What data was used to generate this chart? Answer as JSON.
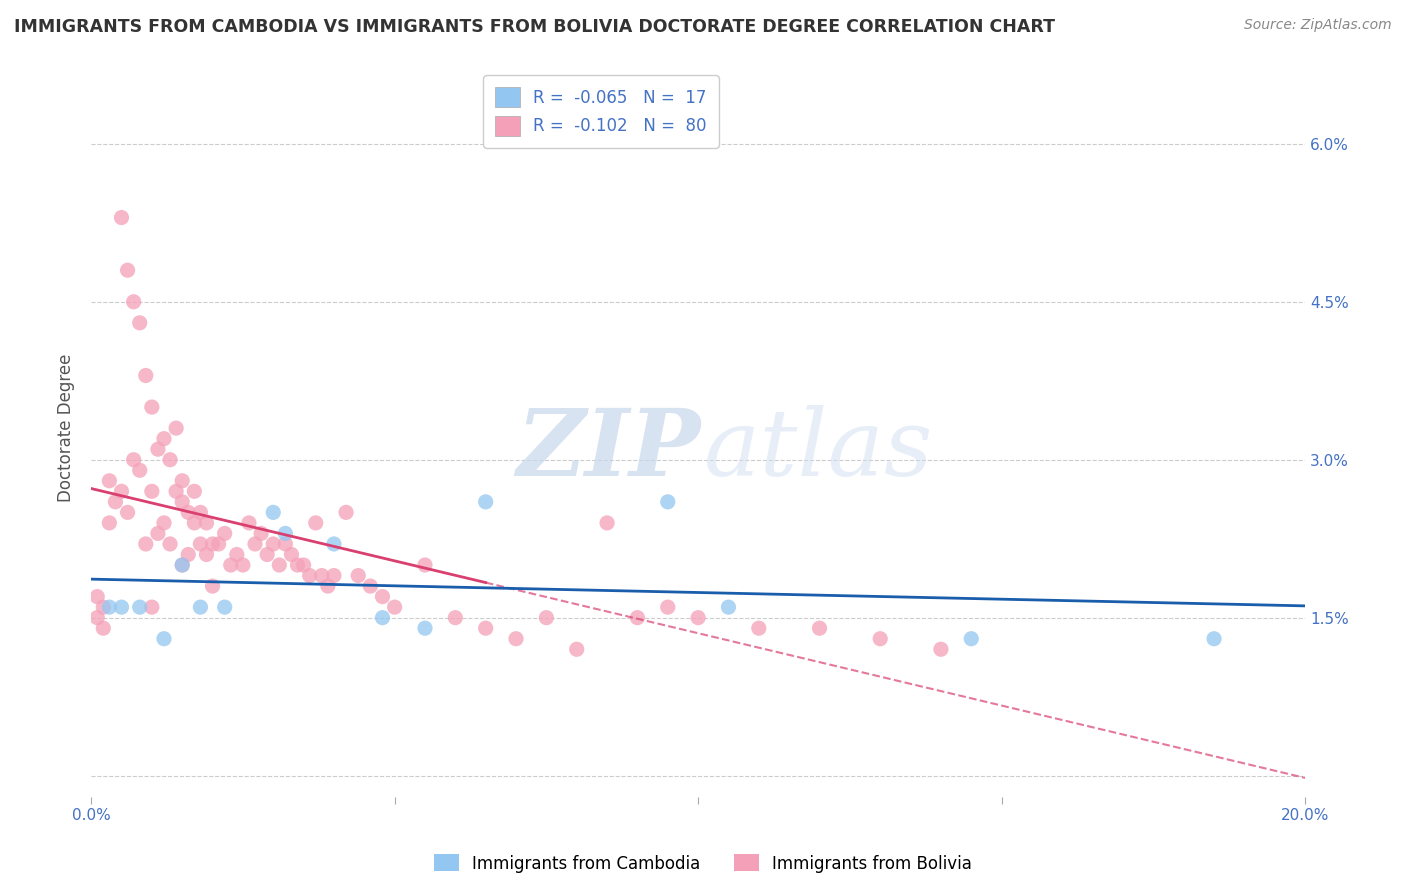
{
  "title": "IMMIGRANTS FROM CAMBODIA VS IMMIGRANTS FROM BOLIVIA DOCTORATE DEGREE CORRELATION CHART",
  "source": "Source: ZipAtlas.com",
  "ylabel": "Doctorate Degree",
  "xlim": [
    0.0,
    0.2
  ],
  "ylim": [
    -0.002,
    0.068
  ],
  "ytick_positions": [
    0.0,
    0.015,
    0.03,
    0.045,
    0.06
  ],
  "ytick_labels": [
    "",
    "1.5%",
    "3.0%",
    "4.5%",
    "6.0%"
  ],
  "xtick_positions": [
    0.0,
    0.05,
    0.1,
    0.15,
    0.2
  ],
  "xtick_labels_left": [
    "0.0%",
    "",
    "",
    "",
    ""
  ],
  "xtick_labels_right": [
    "",
    "",
    "",
    "",
    "20.0%"
  ],
  "grid_color": "#cccccc",
  "background_color": "#ffffff",
  "watermark_zip": "ZIP",
  "watermark_atlas": "atlas",
  "legend_R_cambodia": "-0.065",
  "legend_N_cambodia": "17",
  "legend_R_bolivia": "-0.102",
  "legend_N_bolivia": "80",
  "cambodia_color": "#93C6F0",
  "bolivia_color": "#F4A0B8",
  "cambodia_line_color": "#1A5DAB",
  "bolivia_line_color": "#D94070",
  "scatter_alpha": 0.75,
  "scatter_size": 120,
  "cambodia_x": [
    0.003,
    0.005,
    0.008,
    0.012,
    0.015,
    0.018,
    0.022,
    0.03,
    0.032,
    0.04,
    0.048,
    0.055,
    0.065,
    0.095,
    0.105,
    0.145,
    0.185
  ],
  "cambodia_y": [
    0.016,
    0.016,
    0.016,
    0.013,
    0.02,
    0.016,
    0.016,
    0.025,
    0.023,
    0.022,
    0.015,
    0.014,
    0.026,
    0.026,
    0.016,
    0.013,
    0.013
  ],
  "bolivia_x": [
    0.001,
    0.001,
    0.002,
    0.002,
    0.003,
    0.003,
    0.004,
    0.005,
    0.005,
    0.006,
    0.006,
    0.007,
    0.007,
    0.008,
    0.008,
    0.009,
    0.009,
    0.01,
    0.01,
    0.01,
    0.011,
    0.011,
    0.012,
    0.012,
    0.013,
    0.013,
    0.014,
    0.014,
    0.015,
    0.015,
    0.015,
    0.016,
    0.016,
    0.017,
    0.017,
    0.018,
    0.018,
    0.019,
    0.019,
    0.02,
    0.02,
    0.021,
    0.022,
    0.023,
    0.024,
    0.025,
    0.026,
    0.027,
    0.028,
    0.029,
    0.03,
    0.031,
    0.032,
    0.033,
    0.034,
    0.035,
    0.036,
    0.037,
    0.038,
    0.039,
    0.04,
    0.042,
    0.044,
    0.046,
    0.048,
    0.05,
    0.055,
    0.06,
    0.065,
    0.07,
    0.075,
    0.08,
    0.085,
    0.09,
    0.095,
    0.1,
    0.11,
    0.12,
    0.13,
    0.14
  ],
  "bolivia_y": [
    0.015,
    0.017,
    0.016,
    0.014,
    0.024,
    0.028,
    0.026,
    0.027,
    0.053,
    0.048,
    0.025,
    0.045,
    0.03,
    0.043,
    0.029,
    0.038,
    0.022,
    0.035,
    0.027,
    0.016,
    0.031,
    0.023,
    0.032,
    0.024,
    0.03,
    0.022,
    0.027,
    0.033,
    0.026,
    0.028,
    0.02,
    0.025,
    0.021,
    0.027,
    0.024,
    0.025,
    0.022,
    0.024,
    0.021,
    0.022,
    0.018,
    0.022,
    0.023,
    0.02,
    0.021,
    0.02,
    0.024,
    0.022,
    0.023,
    0.021,
    0.022,
    0.02,
    0.022,
    0.021,
    0.02,
    0.02,
    0.019,
    0.024,
    0.019,
    0.018,
    0.019,
    0.025,
    0.019,
    0.018,
    0.017,
    0.016,
    0.02,
    0.015,
    0.014,
    0.013,
    0.015,
    0.012,
    0.024,
    0.015,
    0.016,
    0.015,
    0.014,
    0.014,
    0.013,
    0.012
  ]
}
